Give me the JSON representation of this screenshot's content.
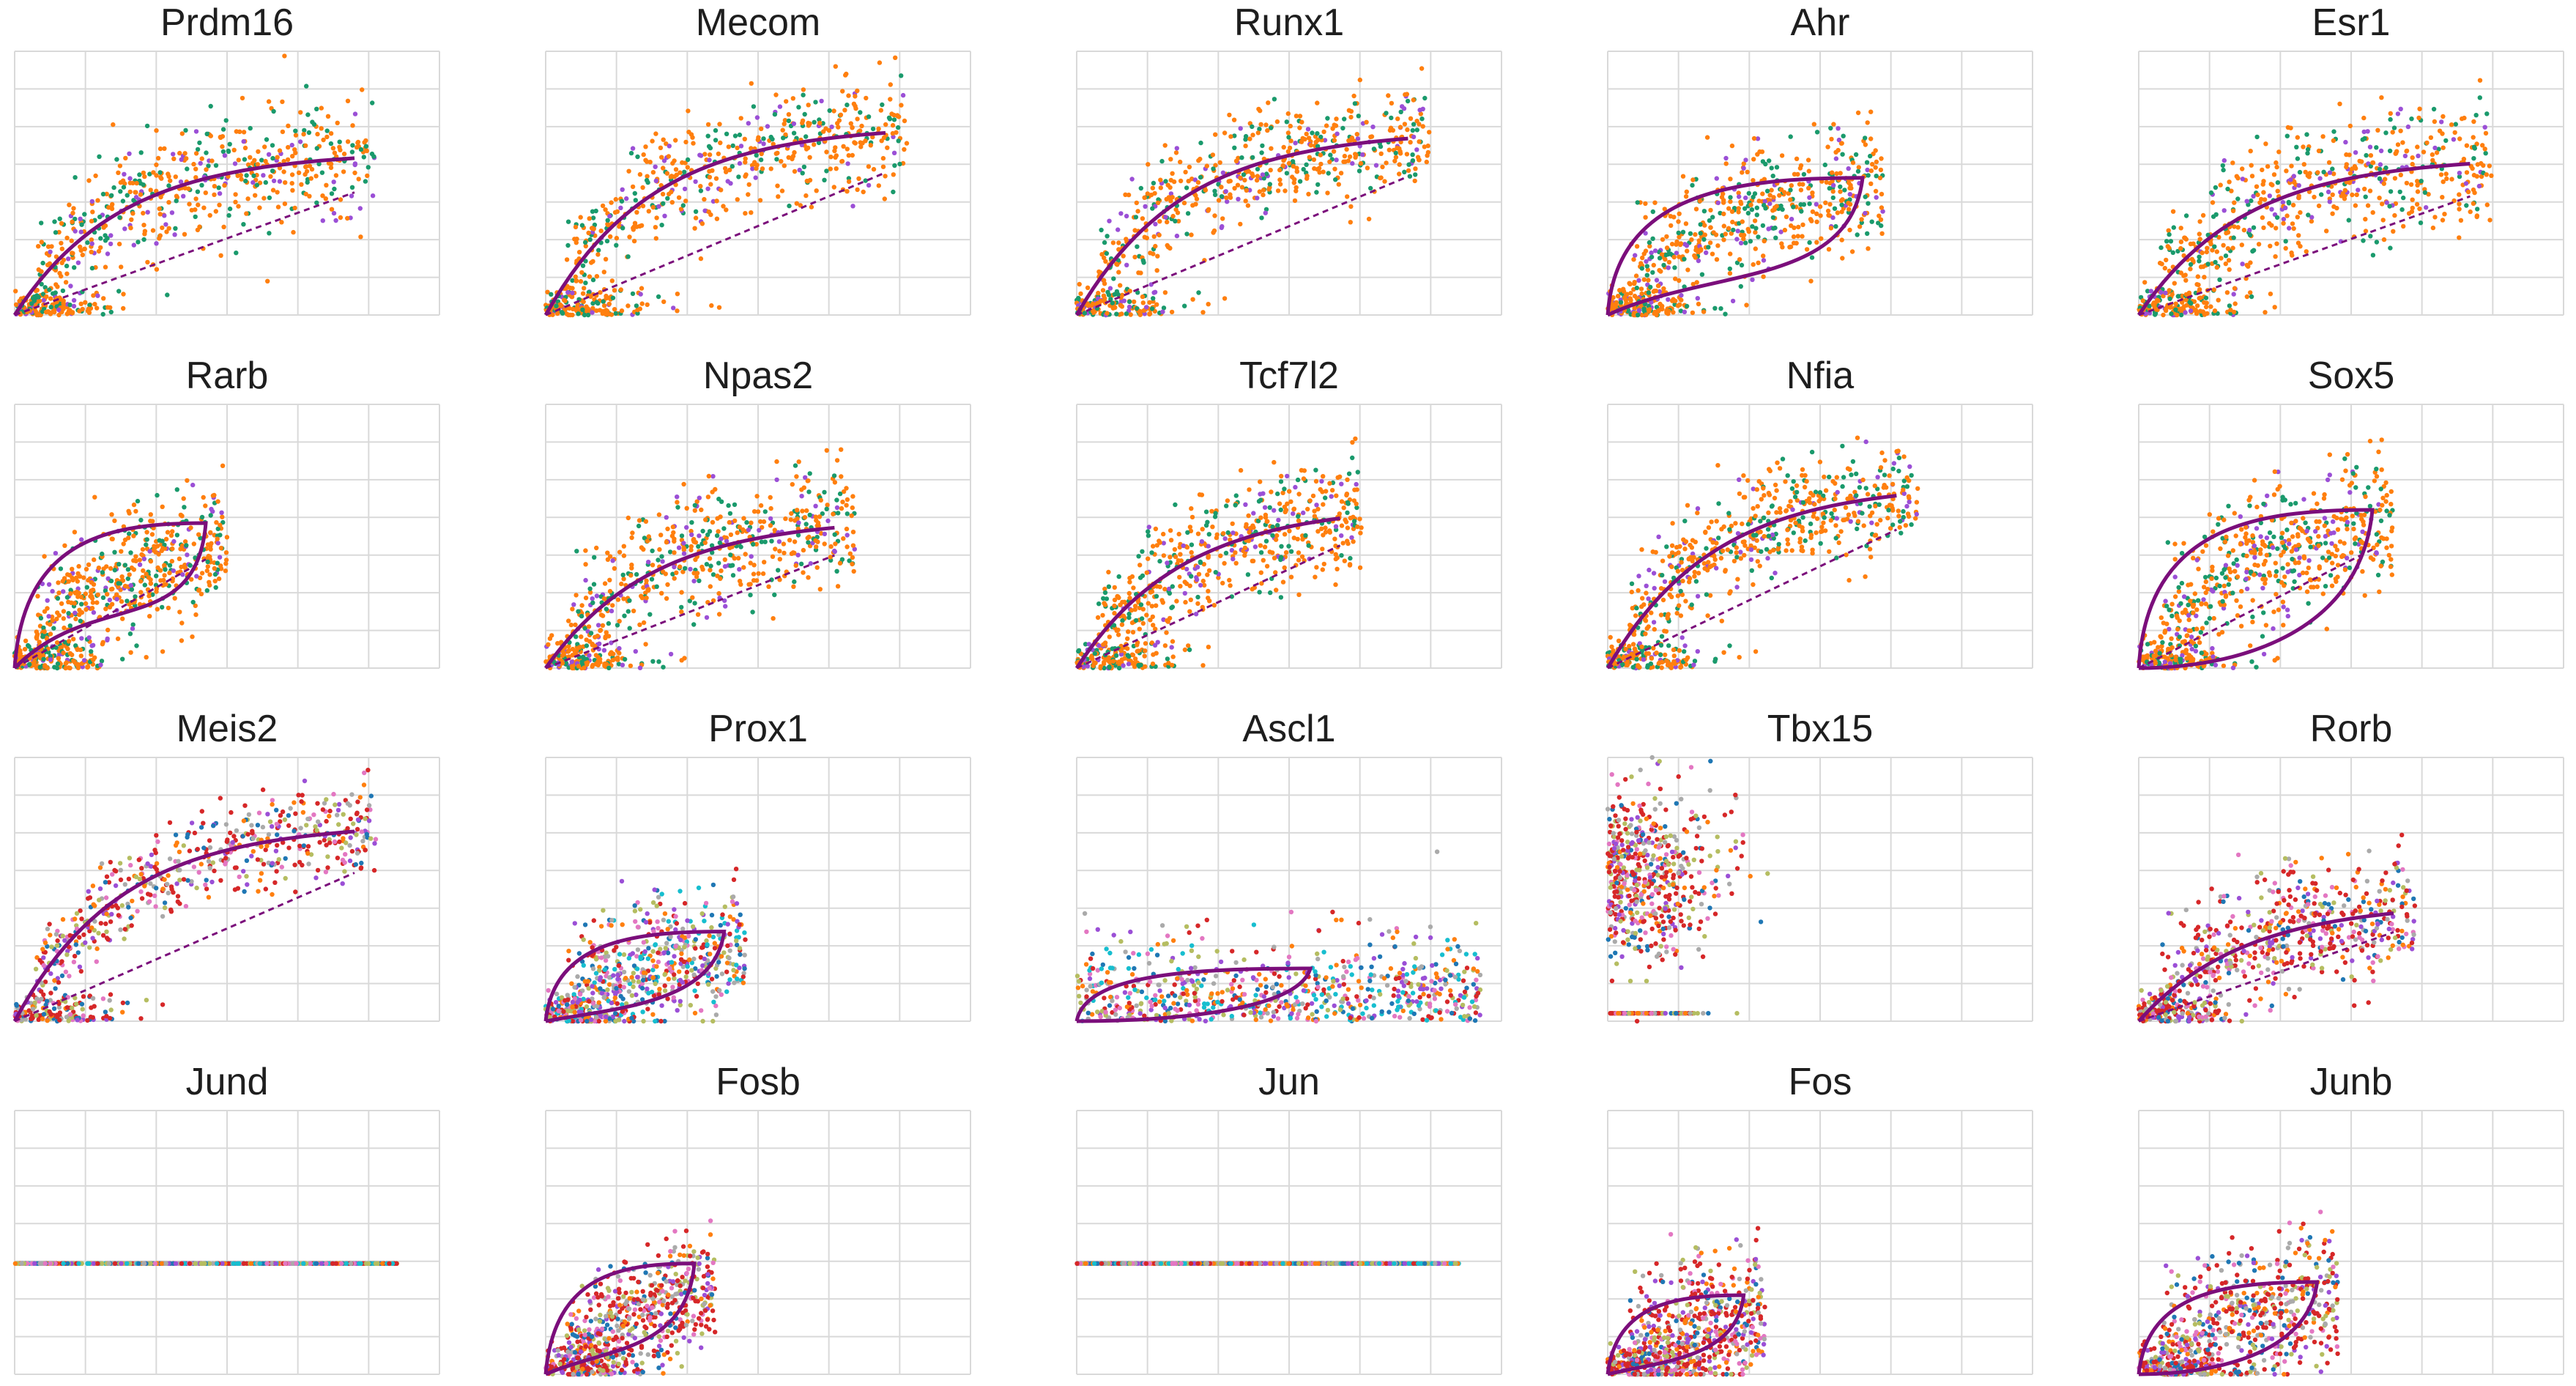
{
  "figure": {
    "panels": [
      {
        "title": "Prdm16",
        "kind": "curve",
        "skew": "orange",
        "spread": 0.18,
        "diag": true,
        "ex": 0.8,
        "top": 0.62,
        "loopBot": 0.0
      },
      {
        "title": "Mecom",
        "kind": "curve",
        "skew": "orange",
        "spread": 0.18,
        "diag": true,
        "ex": 0.8,
        "top": 0.72,
        "loopBot": 0.0
      },
      {
        "title": "Runx1",
        "kind": "curve",
        "skew": "orange",
        "spread": 0.16,
        "diag": true,
        "ex": 0.78,
        "top": 0.7,
        "loopBot": 0.0
      },
      {
        "title": "Ahr",
        "kind": "loop",
        "skew": "orange",
        "spread": 0.18,
        "diag": false,
        "ex": 0.6,
        "top": 0.52,
        "loopBot": 0.18
      },
      {
        "title": "Esr1",
        "kind": "curve",
        "skew": "orange",
        "spread": 0.2,
        "diag": true,
        "ex": 0.78,
        "top": 0.6,
        "loopBot": 0.0
      },
      {
        "title": "Rarb",
        "kind": "loop",
        "skew": "orange",
        "spread": 0.18,
        "diag": true,
        "ex": 0.45,
        "top": 0.55,
        "loopBot": 0.3
      },
      {
        "title": "Npas2",
        "kind": "curve",
        "skew": "orange",
        "spread": 0.18,
        "diag": true,
        "ex": 0.68,
        "top": 0.57,
        "loopBot": 0.0
      },
      {
        "title": "Tcf7l2",
        "kind": "curve",
        "skew": "orange",
        "spread": 0.18,
        "diag": true,
        "ex": 0.62,
        "top": 0.62,
        "loopBot": 0.0
      },
      {
        "title": "Nfia",
        "kind": "curve",
        "skew": "orange",
        "spread": 0.16,
        "diag": true,
        "ex": 0.68,
        "top": 0.7,
        "loopBot": 0.0
      },
      {
        "title": "Sox5",
        "kind": "loop",
        "skew": "orange",
        "spread": 0.2,
        "diag": true,
        "ex": 0.55,
        "top": 0.6,
        "loopBot": 0.0
      },
      {
        "title": "Meis2",
        "kind": "curve",
        "skew": "red",
        "spread": 0.14,
        "diag": true,
        "ex": 0.8,
        "top": 0.75,
        "loopBot": 0.0
      },
      {
        "title": "Prox1",
        "kind": "loop",
        "skew": "mixed",
        "spread": 0.18,
        "diag": false,
        "ex": 0.42,
        "top": 0.34,
        "loopBot": 0.05
      },
      {
        "title": "Ascl1",
        "kind": "flatloop",
        "skew": "mixed",
        "spread": 0.25,
        "diag": false,
        "ex": 0.55,
        "top": 0.2,
        "loopBot": 0.0
      },
      {
        "title": "Tbx15",
        "kind": "none",
        "skew": "red",
        "spread": 0.3,
        "diag": false,
        "ex": 0.45,
        "top": 0.5,
        "loopBot": 0.0
      },
      {
        "title": "Rorb",
        "kind": "curve",
        "skew": "red",
        "spread": 0.18,
        "diag": true,
        "ex": 0.6,
        "top": 0.45,
        "loopBot": 0.0
      },
      {
        "title": "Jund",
        "kind": "line",
        "skew": "mixed",
        "spread": 0.0,
        "diag": false,
        "ex": 0.9,
        "top": 0.42,
        "loopBot": 0.0
      },
      {
        "title": "Fosb",
        "kind": "loop",
        "skew": "red",
        "spread": 0.16,
        "diag": false,
        "ex": 0.35,
        "top": 0.42,
        "loopBot": 0.1
      },
      {
        "title": "Jun",
        "kind": "line",
        "skew": "mixed",
        "spread": 0.0,
        "diag": false,
        "ex": 0.9,
        "top": 0.42,
        "loopBot": 0.0
      },
      {
        "title": "Fos",
        "kind": "loop",
        "skew": "red",
        "spread": 0.2,
        "diag": false,
        "ex": 0.32,
        "top": 0.3,
        "loopBot": 0.05
      },
      {
        "title": "Junb",
        "kind": "loop",
        "skew": "red",
        "spread": 0.2,
        "diag": false,
        "ex": 0.42,
        "top": 0.35,
        "loopBot": 0.0
      }
    ]
  },
  "chart_data": {
    "type": "scatter",
    "grid": true,
    "colors": {
      "curve": "#7b0e7b",
      "orange": "#ff7f0e",
      "green": "#1a9a6c",
      "purple": "#9b4fd6",
      "red": "#d62728",
      "olive": "#b5bd61",
      "pink": "#e377c2",
      "blue": "#1f77b4",
      "teal": "#17becf",
      "gray": "#aaaaaa",
      "grid": "#d9d9d9"
    }
  }
}
